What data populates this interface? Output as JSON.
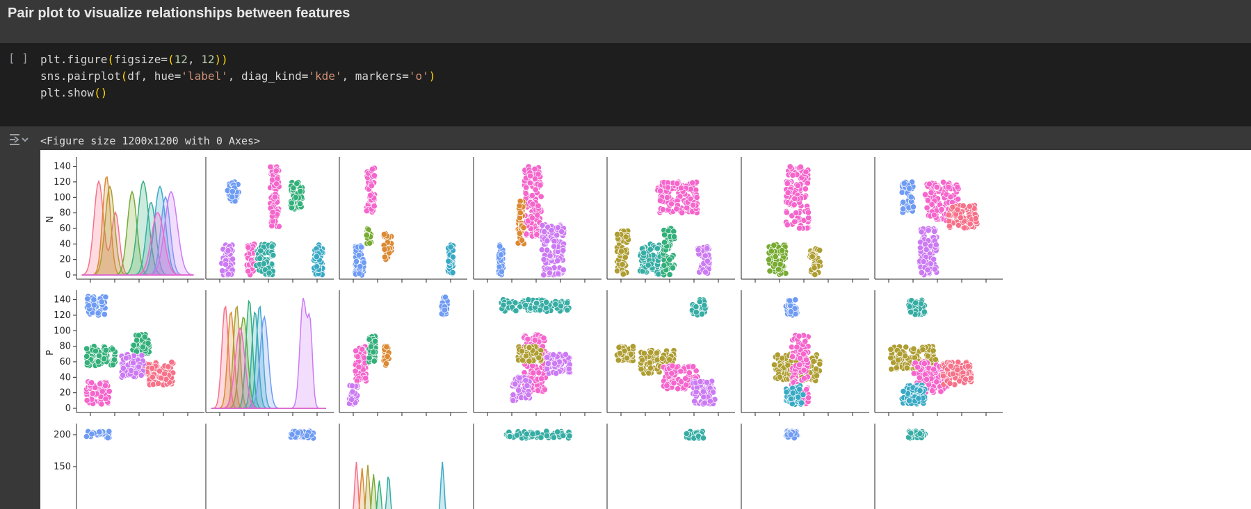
{
  "heading": {
    "title": "Pair plot to visualize relationships between features"
  },
  "code_cell": {
    "run_indicator": "[ ]",
    "lines": [
      [
        {
          "t": "plt.figure",
          "c": "tk-fn"
        },
        {
          "t": "(",
          "c": "tk-p1"
        },
        {
          "t": "figsize=",
          "c": "tk-fn"
        },
        {
          "t": "(",
          "c": "tk-p1"
        },
        {
          "t": "12",
          "c": "tk-num"
        },
        {
          "t": ", ",
          "c": "tk-fn"
        },
        {
          "t": "12",
          "c": "tk-num"
        },
        {
          "t": "))",
          "c": "tk-p1"
        }
      ],
      [
        {
          "t": "sns.pairplot",
          "c": "tk-fn"
        },
        {
          "t": "(",
          "c": "tk-p1"
        },
        {
          "t": "df, hue=",
          "c": "tk-fn"
        },
        {
          "t": "'label'",
          "c": "tk-str"
        },
        {
          "t": ", diag_kind=",
          "c": "tk-fn"
        },
        {
          "t": "'kde'",
          "c": "tk-str"
        },
        {
          "t": ", markers=",
          "c": "tk-fn"
        },
        {
          "t": "'o'",
          "c": "tk-str"
        },
        {
          "t": ")",
          "c": "tk-p1"
        }
      ],
      [
        {
          "t": "plt.show",
          "c": "tk-fn"
        },
        {
          "t": "()",
          "c": "tk-p1"
        }
      ]
    ]
  },
  "output": {
    "gutter_icon": "output-toggle-icon",
    "text": "<Figure size 1200x1200 with 0 Axes>"
  },
  "chart_data": {
    "type": "scatter",
    "rows": [
      {
        "ylabel": "N",
        "yticks": [
          "0",
          "20",
          "40",
          "60",
          "80",
          "100",
          "120",
          "140"
        ]
      },
      {
        "ylabel": "P",
        "yticks": [
          "0",
          "20",
          "40",
          "60",
          "80",
          "100",
          "120",
          "140"
        ]
      },
      {
        "ylabel": "",
        "yticks": [
          "150",
          "200"
        ]
      }
    ],
    "hue_colors": [
      "#f77189",
      "#dc8932",
      "#ae9d31",
      "#77ab31",
      "#33b07a",
      "#36ada4",
      "#38a9c5",
      "#6e9bf4",
      "#cc7af4",
      "#f565cc"
    ],
    "clusters_row_N": [
      [
        {
          "x": [
            15,
            25
          ],
          "y": [
            95,
            120
          ],
          "c": 7
        },
        {
          "x": [
            32,
            40
          ],
          "y": [
            0,
            40
          ],
          "c": 9
        },
        {
          "x": [
            52,
            60
          ],
          "y": [
            60,
            140
          ],
          "c": 9
        },
        {
          "x": [
            70,
            80
          ],
          "y": [
            85,
            120
          ],
          "c": 4
        },
        {
          "x": [
            10,
            20
          ],
          "y": [
            0,
            40
          ],
          "c": 8
        },
        {
          "x": [
            40,
            55
          ],
          "y": [
            0,
            40
          ],
          "c": 5
        },
        {
          "x": [
            90,
            98
          ],
          "y": [
            0,
            40
          ],
          "c": 6
        }
      ],
      [
        {
          "x": [
            10,
            18
          ],
          "y": [
            0,
            40
          ],
          "c": 7
        },
        {
          "x": [
            20,
            27
          ],
          "y": [
            80,
            140
          ],
          "c": 9
        },
        {
          "x": [
            20,
            24
          ],
          "y": [
            40,
            60
          ],
          "c": 3
        },
        {
          "x": [
            35,
            42
          ],
          "y": [
            20,
            55
          ],
          "c": 1
        },
        {
          "x": [
            90,
            95
          ],
          "y": [
            0,
            40
          ],
          "c": 6
        }
      ],
      [
        {
          "x": [
            18,
            22
          ],
          "y": [
            0,
            40
          ],
          "c": 7
        },
        {
          "x": [
            40,
            55
          ],
          "y": [
            50,
            140
          ],
          "c": 9
        },
        {
          "x": [
            35,
            40
          ],
          "y": [
            40,
            100
          ],
          "c": 1
        },
        {
          "x": [
            55,
            75
          ],
          "y": [
            0,
            65
          ],
          "c": 8
        }
      ],
      [
        {
          "x": [
            5,
            15
          ],
          "y": [
            0,
            60
          ],
          "c": 2
        },
        {
          "x": [
            25,
            45
          ],
          "y": [
            0,
            40
          ],
          "c": 5
        },
        {
          "x": [
            45,
            55
          ],
          "y": [
            0,
            60
          ],
          "c": 4
        },
        {
          "x": [
            40,
            75
          ],
          "y": [
            80,
            120
          ],
          "c": 9
        },
        {
          "x": [
            75,
            85
          ],
          "y": [
            0,
            40
          ],
          "c": 8
        }
      ],
      [
        {
          "x": [
            20,
            35
          ],
          "y": [
            0,
            40
          ],
          "c": 3
        },
        {
          "x": [
            35,
            55
          ],
          "y": [
            60,
            140
          ],
          "c": 9
        },
        {
          "x": [
            55,
            65
          ],
          "y": [
            0,
            35
          ],
          "c": 2
        }
      ],
      [
        {
          "x": [
            20,
            30
          ],
          "y": [
            80,
            120
          ],
          "c": 7
        },
        {
          "x": [
            40,
            70
          ],
          "y": [
            70,
            120
          ],
          "c": 9
        },
        {
          "x": [
            35,
            50
          ],
          "y": [
            0,
            60
          ],
          "c": 8
        },
        {
          "x": [
            60,
            85
          ],
          "y": [
            60,
            90
          ],
          "c": 0
        }
      ]
    ]
  }
}
